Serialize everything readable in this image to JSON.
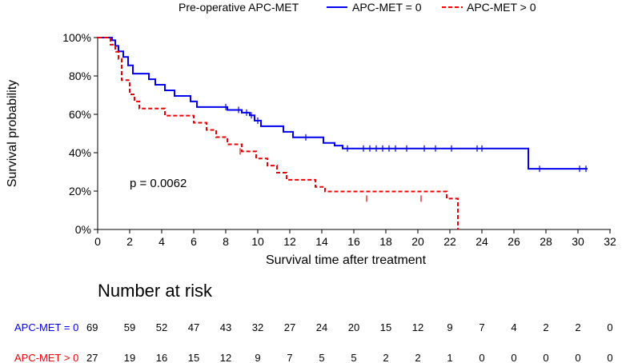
{
  "chart_data": {
    "type": "line",
    "subtype": "kaplan-meier",
    "title": "",
    "legend": {
      "title": "Pre-operative APC-MET",
      "placement": "top",
      "entries": [
        "APC-MET = 0",
        "APC-MET > 0"
      ]
    },
    "xlabel": "Survival time after treatment",
    "ylabel": "Survival probability",
    "xlim": [
      0,
      32
    ],
    "ylim": [
      0,
      1
    ],
    "x_ticks": [
      0,
      2,
      4,
      6,
      8,
      10,
      12,
      14,
      16,
      18,
      20,
      22,
      24,
      26,
      28,
      30,
      32
    ],
    "x_tick_labels": [
      "0",
      "2",
      "4",
      "6",
      "8",
      "10",
      "12",
      "14",
      "16",
      "18",
      "20",
      "22",
      "24",
      "26",
      "28",
      "30",
      "32"
    ],
    "y_ticks": [
      0,
      0.2,
      0.4,
      0.6,
      0.8,
      1.0
    ],
    "y_tick_labels": [
      "0%",
      "20%",
      "40%",
      "60%",
      "80%",
      "100%"
    ],
    "annotation": "p = 0.0062",
    "series": [
      {
        "name": "APC-MET = 0",
        "color": "#0000ee",
        "dash": "solid",
        "steps": [
          [
            0,
            1.0
          ],
          [
            0.9,
            0.986
          ],
          [
            1.1,
            0.957
          ],
          [
            1.3,
            0.928
          ],
          [
            1.6,
            0.899
          ],
          [
            1.9,
            0.855
          ],
          [
            2.2,
            0.812
          ],
          [
            3.2,
            0.783
          ],
          [
            3.6,
            0.754
          ],
          [
            4.2,
            0.725
          ],
          [
            4.8,
            0.696
          ],
          [
            5.8,
            0.667
          ],
          [
            6.2,
            0.638
          ],
          [
            8.1,
            0.623
          ],
          [
            9.0,
            0.609
          ],
          [
            9.5,
            0.595
          ],
          [
            9.8,
            0.567
          ],
          [
            10.2,
            0.538
          ],
          [
            11.6,
            0.509
          ],
          [
            12.2,
            0.48
          ],
          [
            14.1,
            0.451
          ],
          [
            14.8,
            0.437
          ],
          [
            15.3,
            0.422
          ],
          [
            26.9,
            0.316
          ],
          [
            30.6,
            0.316
          ]
        ],
        "censors": [
          [
            8.0,
            0.638
          ],
          [
            8.8,
            0.623
          ],
          [
            9.3,
            0.609
          ],
          [
            9.6,
            0.595
          ],
          [
            10.0,
            0.567
          ],
          [
            13.0,
            0.48
          ],
          [
            15.6,
            0.422
          ],
          [
            16.6,
            0.422
          ],
          [
            17.0,
            0.422
          ],
          [
            17.4,
            0.422
          ],
          [
            17.8,
            0.422
          ],
          [
            18.2,
            0.422
          ],
          [
            18.6,
            0.422
          ],
          [
            19.3,
            0.422
          ],
          [
            20.4,
            0.422
          ],
          [
            21.1,
            0.422
          ],
          [
            22.1,
            0.422
          ],
          [
            23.7,
            0.422
          ],
          [
            24.0,
            0.422
          ],
          [
            27.6,
            0.316
          ],
          [
            30.1,
            0.316
          ],
          [
            30.5,
            0.316
          ]
        ]
      },
      {
        "name": "APC-MET > 0",
        "color": "#ee0000",
        "dash": "dashed",
        "steps": [
          [
            0,
            1.0
          ],
          [
            0.8,
            0.963
          ],
          [
            1.1,
            0.926
          ],
          [
            1.3,
            0.889
          ],
          [
            1.5,
            0.778
          ],
          [
            2.0,
            0.704
          ],
          [
            2.3,
            0.667
          ],
          [
            2.6,
            0.63
          ],
          [
            4.2,
            0.593
          ],
          [
            6.0,
            0.556
          ],
          [
            6.8,
            0.519
          ],
          [
            7.4,
            0.481
          ],
          [
            8.1,
            0.444
          ],
          [
            9.0,
            0.407
          ],
          [
            9.9,
            0.37
          ],
          [
            10.6,
            0.333
          ],
          [
            11.2,
            0.296
          ],
          [
            11.8,
            0.259
          ],
          [
            13.6,
            0.222
          ],
          [
            14.2,
            0.198
          ],
          [
            21.0,
            0.198
          ],
          [
            21.8,
            0.161
          ],
          [
            22.5,
            0.161
          ],
          [
            22.5,
            0.0
          ]
        ],
        "censors": [
          [
            8.9,
            0.407
          ],
          [
            16.8,
            0.161
          ],
          [
            20.2,
            0.161
          ]
        ]
      }
    ],
    "risk_table": {
      "title": "Number at risk",
      "times": [
        0,
        2,
        4,
        6,
        8,
        10,
        12,
        14,
        16,
        18,
        20,
        22,
        24,
        26,
        28,
        30,
        32
      ],
      "rows": [
        {
          "label": "APC-MET = 0",
          "color": "#0000ee",
          "values": [
            "69",
            "59",
            "52",
            "47",
            "43",
            "32",
            "27",
            "24",
            "20",
            "15",
            "12",
            "9",
            "7",
            "4",
            "2",
            "2",
            "0"
          ]
        },
        {
          "label": "APC-MET > 0",
          "color": "#ee0000",
          "values": [
            "27",
            "19",
            "16",
            "15",
            "12",
            "9",
            "7",
            "5",
            "5",
            "2",
            "2",
            "1",
            "0",
            "0",
            "0",
            "0",
            "0"
          ]
        }
      ]
    }
  }
}
